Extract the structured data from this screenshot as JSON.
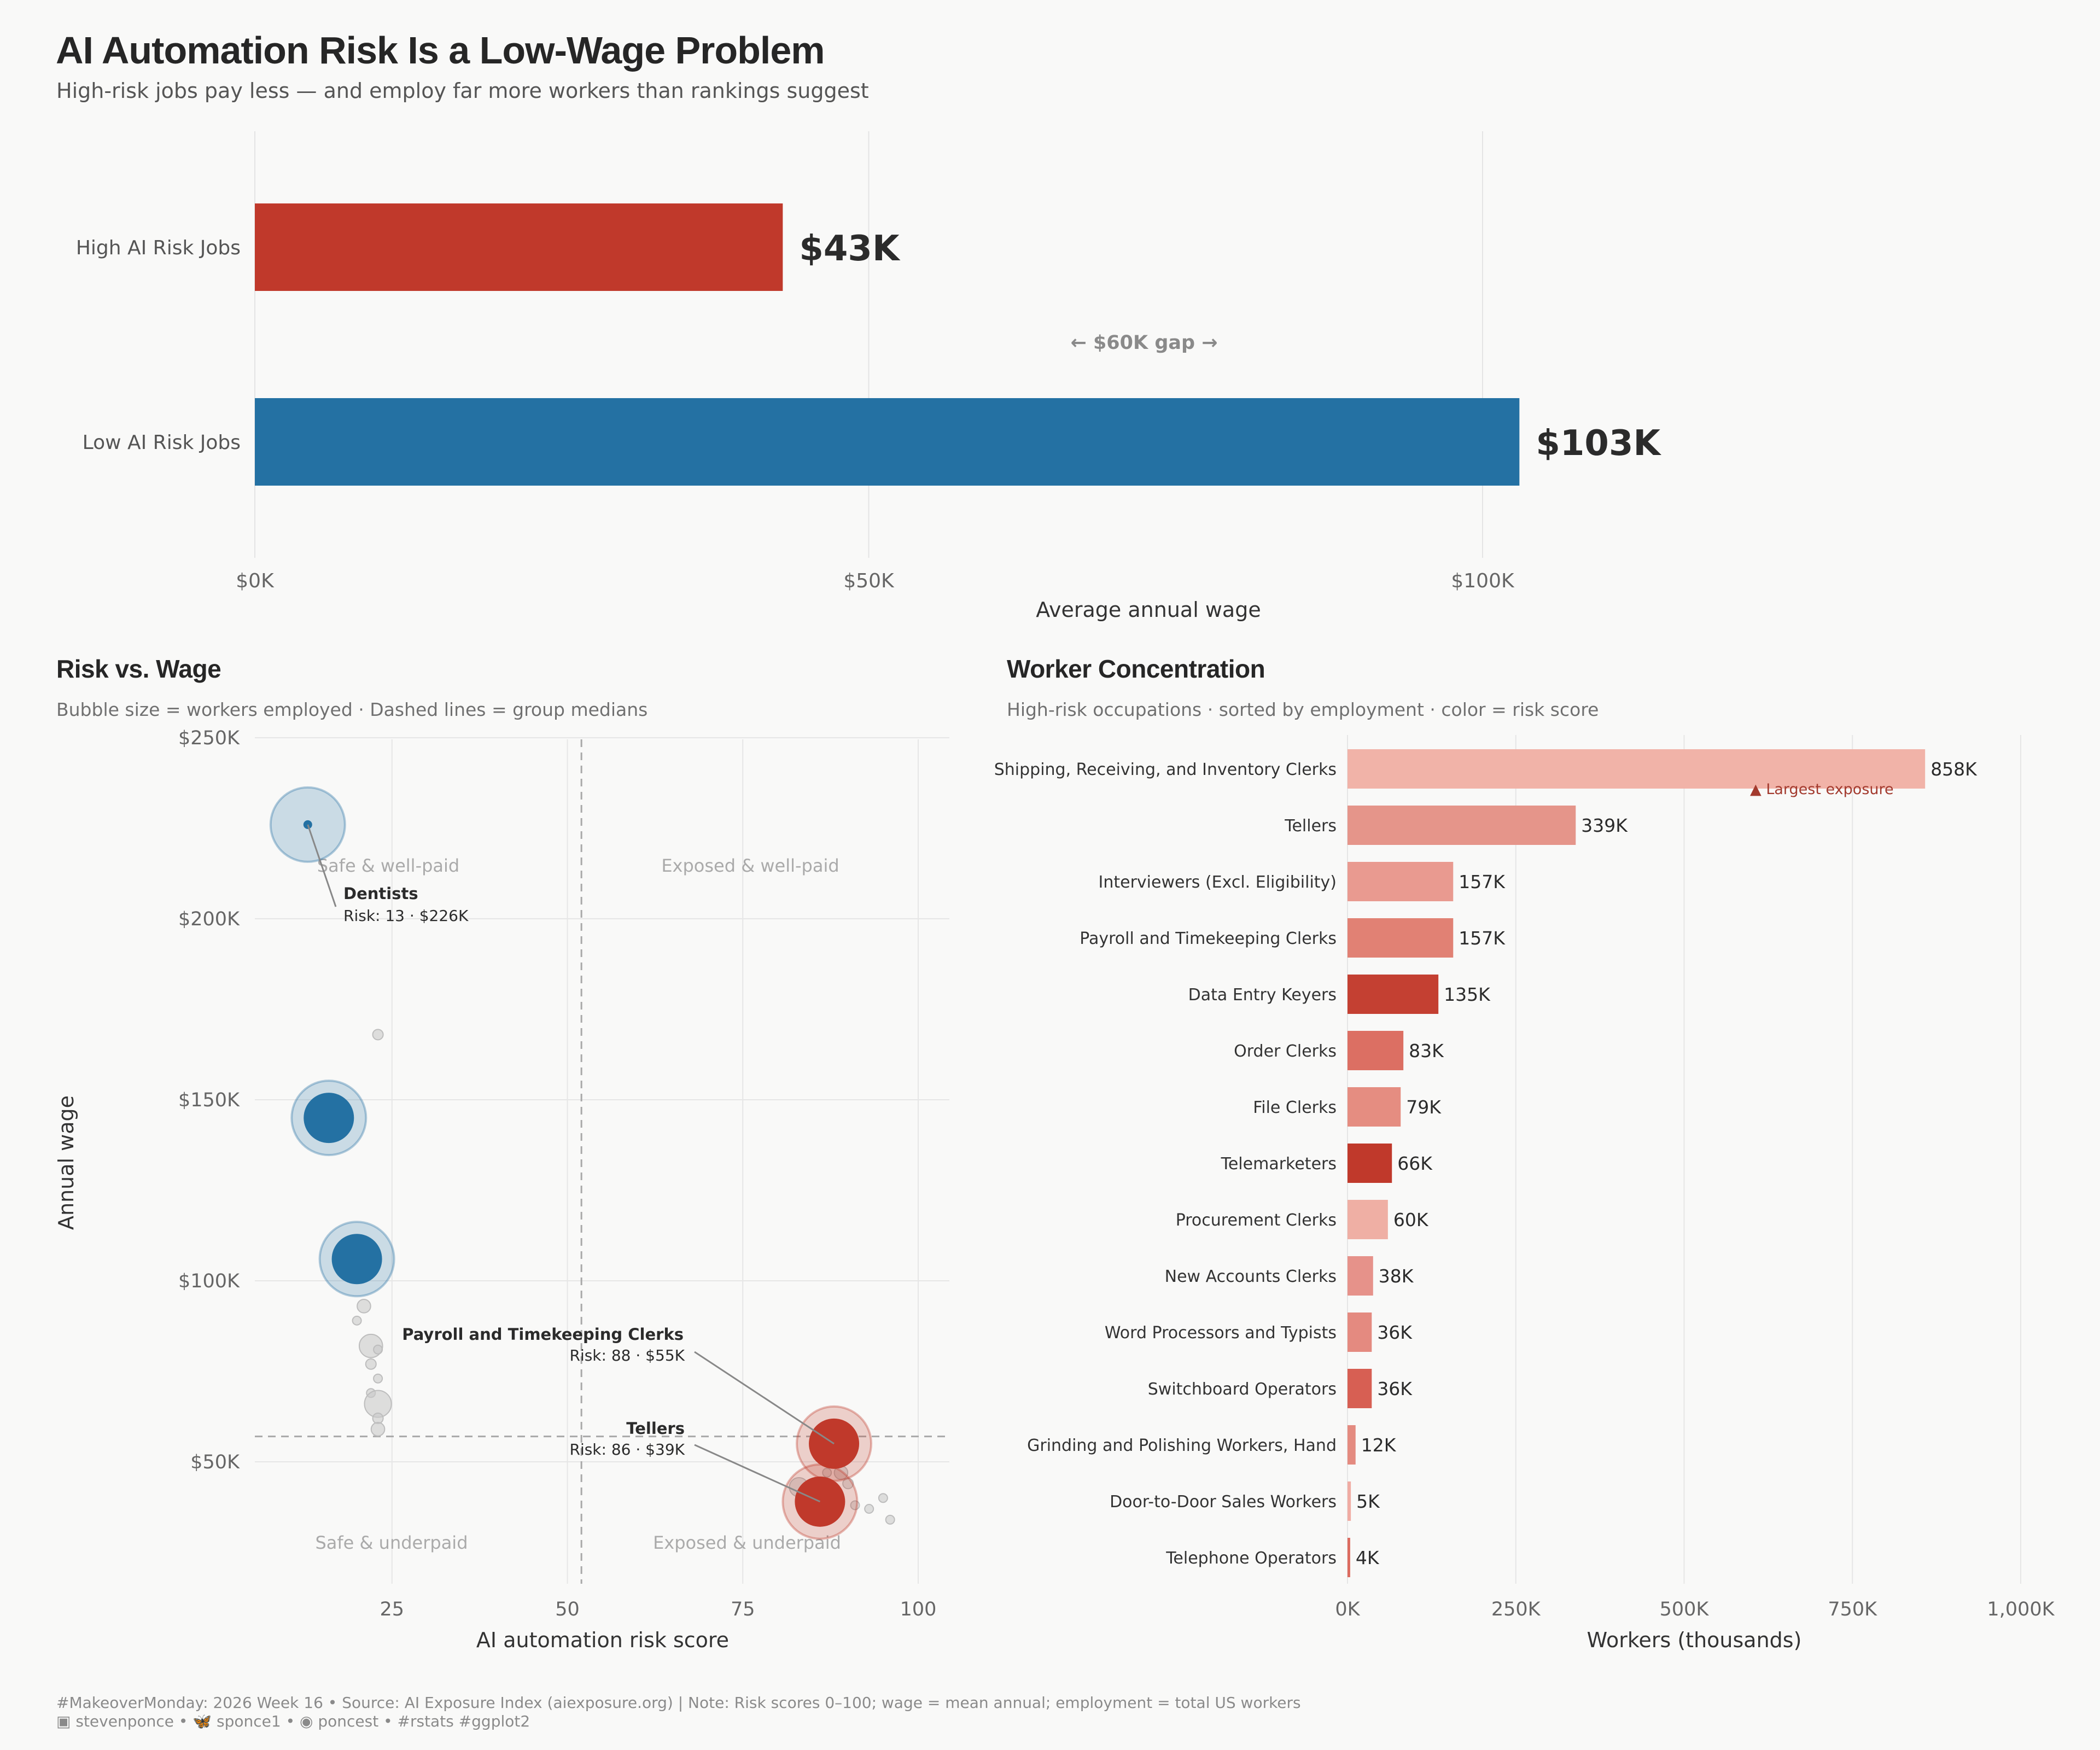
{
  "header": {
    "title": "AI Automation Risk Is a Low-Wage Problem",
    "subtitle": "High-risk jobs pay less — and employ far more workers than rankings suggest"
  },
  "colors": {
    "high_risk": "#c0392b",
    "low_risk": "#2471a3",
    "neutral_bubble": "#cfcfcf",
    "background": "#f9f9f8"
  },
  "panel_scatter": {
    "title": "Risk vs. Wage",
    "subtitle": "Bubble size = workers employed · Dashed lines = group medians"
  },
  "panel_workers": {
    "title": "Worker Concentration",
    "subtitle": "High-risk occupations · sorted by employment · color = risk score"
  },
  "footer": {
    "line1": "#MakeoverMonday: 2026 Week 16 • Source: AI Exposure Index (aiexposure.org) | Note: Risk scores 0–100; wage = mean annual; employment = total US workers",
    "line2": "▣ stevenponce • 🦋 sponce1 • ◉ poncest • #rstats #ggplot2"
  },
  "chart_data": [
    {
      "type": "bar",
      "orientation": "horizontal",
      "categories": [
        "High AI Risk Jobs",
        "Low AI Risk Jobs"
      ],
      "values": [
        43,
        103
      ],
      "value_labels": [
        "$43K",
        "$103K"
      ],
      "colors": [
        "#c0392b",
        "#2471a3"
      ],
      "unit": "$K",
      "xlabel": "Average annual wage",
      "xlim": [
        0,
        115
      ],
      "xticks": [
        0,
        50,
        100
      ],
      "xtick_labels": [
        "$0K",
        "$50K",
        "$100K"
      ],
      "annotation": "← $60K gap →",
      "grid": true
    },
    {
      "type": "scatter",
      "xlabel": "AI automation risk score",
      "ylabel": "Annual wage",
      "xlim": [
        0,
        103
      ],
      "ylim": [
        0,
        250
      ],
      "xticks": [
        25,
        50,
        75,
        100
      ],
      "xtick_labels": [
        "25",
        "50",
        "75",
        "100"
      ],
      "yticks": [
        50,
        100,
        150,
        200,
        250
      ],
      "ytick_labels": [
        "$50K",
        "$100K",
        "$150K",
        "$200K",
        "$250K"
      ],
      "median_x": 52,
      "median_y": 57,
      "quadrant_labels": {
        "top_left": "Safe & well-paid",
        "top_right": "Exposed & well-paid",
        "bottom_left": "Safe & underpaid",
        "bottom_right": "Exposed & underpaid"
      },
      "points": [
        {
          "risk": 13,
          "wage": 226,
          "workers": 0.2,
          "group": "low"
        },
        {
          "risk": 16,
          "wage": 145,
          "workers": 135,
          "group": "low"
        },
        {
          "risk": 20,
          "wage": 106,
          "workers": 200,
          "group": "low"
        },
        {
          "risk": 88,
          "wage": 55,
          "workers": 157,
          "group": "high"
        },
        {
          "risk": 86,
          "wage": 39,
          "workers": 339,
          "group": "high"
        },
        {
          "risk": 23,
          "wage": 168,
          "workers": 3,
          "group": "mid"
        },
        {
          "risk": 21,
          "wage": 93,
          "workers": 5,
          "group": "mid"
        },
        {
          "risk": 20,
          "wage": 89,
          "workers": 1,
          "group": "mid"
        },
        {
          "risk": 22,
          "wage": 82,
          "workers": 15,
          "group": "mid"
        },
        {
          "risk": 23,
          "wage": 81,
          "workers": 1,
          "group": "mid"
        },
        {
          "risk": 22,
          "wage": 77,
          "workers": 3,
          "group": "mid"
        },
        {
          "risk": 23,
          "wage": 73,
          "workers": 0.5,
          "group": "mid"
        },
        {
          "risk": 22,
          "wage": 69,
          "workers": 1,
          "group": "mid"
        },
        {
          "risk": 23,
          "wage": 66,
          "workers": 20,
          "group": "mid"
        },
        {
          "risk": 23,
          "wage": 62,
          "workers": 3,
          "group": "mid"
        },
        {
          "risk": 23,
          "wage": 59,
          "workers": 5,
          "group": "mid"
        },
        {
          "risk": 83,
          "wage": 43,
          "workers": 10,
          "group": "mid"
        },
        {
          "risk": 84,
          "wage": 37,
          "workers": 3,
          "group": "mid"
        },
        {
          "risk": 85,
          "wage": 34,
          "workers": 1,
          "group": "mid"
        },
        {
          "risk": 87,
          "wage": 47,
          "workers": 2,
          "group": "mid"
        },
        {
          "risk": 89,
          "wage": 47,
          "workers": 5,
          "group": "mid"
        },
        {
          "risk": 90,
          "wage": 44,
          "workers": 3,
          "group": "mid"
        },
        {
          "risk": 91,
          "wage": 38,
          "workers": 1,
          "group": "mid"
        },
        {
          "risk": 93,
          "wage": 37,
          "workers": 0.5,
          "group": "mid"
        },
        {
          "risk": 95,
          "wage": 40,
          "workers": 2,
          "group": "mid"
        },
        {
          "risk": 96,
          "wage": 34,
          "workers": 1,
          "group": "mid"
        }
      ],
      "annotations": [
        {
          "name": "Dentists",
          "detail": "Risk: 13 · $226K",
          "risk": 13,
          "wage": 226
        },
        {
          "name": "Payroll and Timekeeping Clerks",
          "detail": "Risk: 88 · $55K",
          "risk": 88,
          "wage": 55
        },
        {
          "name": "Tellers",
          "detail": "Risk: 86 · $39K",
          "risk": 86,
          "wage": 39
        }
      ]
    },
    {
      "type": "bar",
      "orientation": "horizontal",
      "xlabel": "Workers (thousands)",
      "xlim": [
        0,
        1000
      ],
      "xticks": [
        0,
        250,
        500,
        750,
        1000
      ],
      "xtick_labels": [
        "0K",
        "250K",
        "500K",
        "750K",
        "1,000K"
      ],
      "annotation": "▲ Largest exposure",
      "categories": [
        "Shipping, Receiving, and Inventory Clerks",
        "Tellers",
        "Interviewers (Excl. Eligibility)",
        "Payroll and Timekeeping Clerks",
        "Data Entry Keyers",
        "Order Clerks",
        "File Clerks",
        "Telemarketers",
        "Procurement Clerks",
        "New Accounts Clerks",
        "Word Processors and Typists",
        "Switchboard Operators",
        "Grinding and Polishing Workers, Hand",
        "Door-to-Door Sales Workers",
        "Telephone Operators"
      ],
      "values": [
        858,
        339,
        157,
        157,
        135,
        83,
        79,
        66,
        60,
        38,
        36,
        36,
        12,
        5,
        4
      ],
      "value_labels": [
        "858K",
        "339K",
        "157K",
        "157K",
        "135K",
        "83K",
        "79K",
        "66K",
        "60K",
        "38K",
        "36K",
        "36K",
        "12K",
        "5K",
        "4K"
      ],
      "colors": [
        "#f1b3a8",
        "#e5958a",
        "#e99a90",
        "#e18174",
        "#c44032",
        "#dc6f63",
        "#e58d81",
        "#c0392b",
        "#efafa4",
        "#e6928a",
        "#e48a80",
        "#d75f53",
        "#e48b80",
        "#f0aca3",
        "#dc6b5f"
      ]
    }
  ]
}
